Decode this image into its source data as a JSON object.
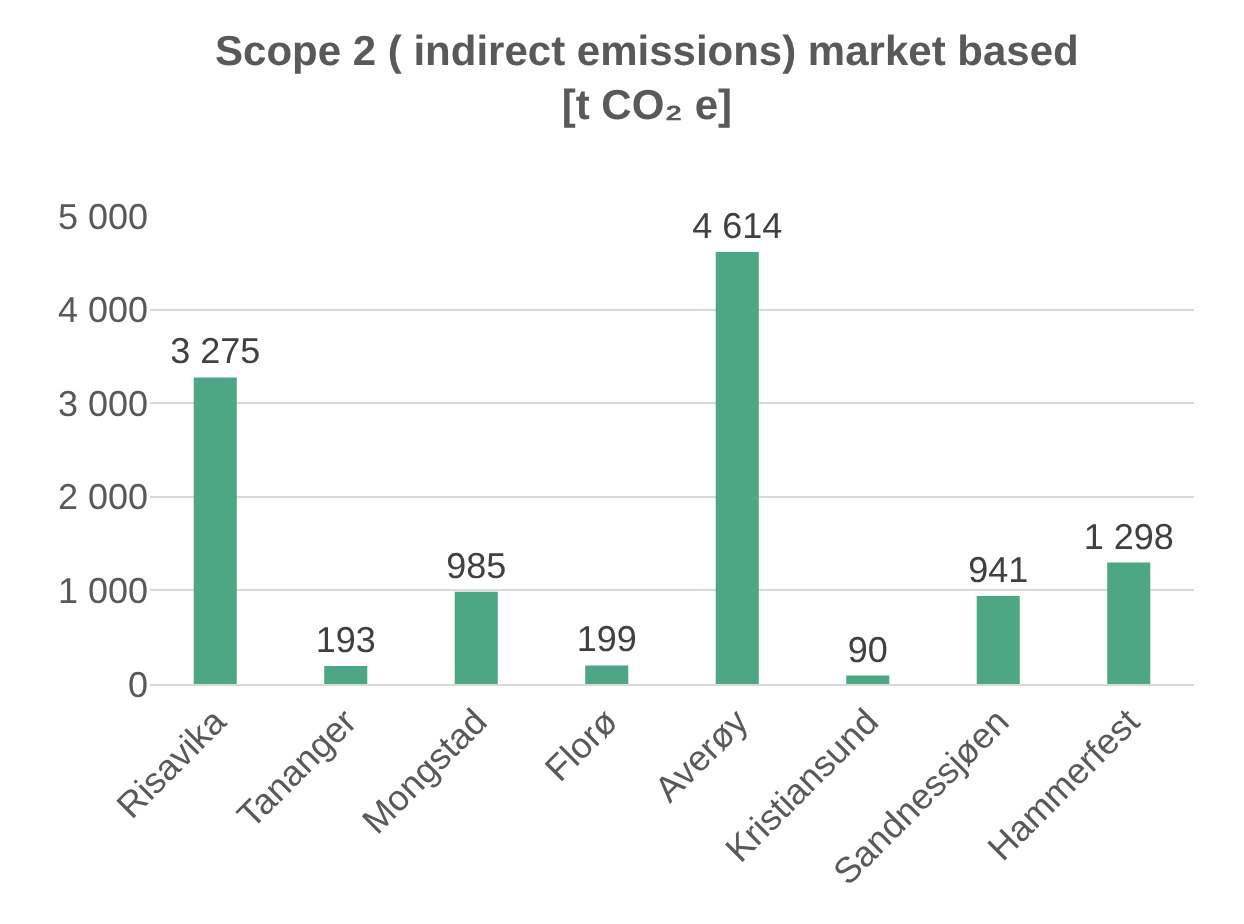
{
  "chart_data": {
    "type": "bar",
    "title": "Scope 2 ( indirect emissions) market based\n[t CO₂ e]",
    "categories": [
      "Risavika",
      "Tananger",
      "Mongstad",
      "Florø",
      "Averøy",
      "Kristiansund",
      "Sandnessjøen",
      "Hammerfest"
    ],
    "values": [
      3275,
      193,
      985,
      199,
      4614,
      90,
      941,
      1298
    ],
    "value_labels": [
      "3 275",
      "193",
      "985",
      "199",
      "4 614",
      "90",
      "941",
      "1 298"
    ],
    "color": "#4ea784",
    "ylim": [
      0,
      5000
    ],
    "yticks": [
      {
        "value": 0,
        "label": "0"
      },
      {
        "value": 1000,
        "label": "1 000"
      },
      {
        "value": 2000,
        "label": "2 000"
      },
      {
        "value": 3000,
        "label": "3 000"
      },
      {
        "value": 4000,
        "label": "4 000"
      },
      {
        "value": 5000,
        "label": "5 000"
      }
    ],
    "grid": "y",
    "legend": false
  }
}
